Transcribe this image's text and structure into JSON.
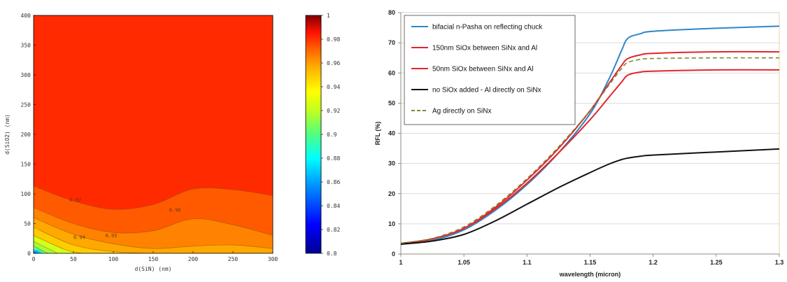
{
  "chart_data": [
    {
      "type": "heatmap",
      "title": "",
      "xlabel": "d(SiN) (nm)",
      "ylabel": "d(SiO2) (nm)",
      "xlim": [
        0,
        300
      ],
      "ylim": [
        0,
        400
      ],
      "xticks": [
        0,
        50,
        100,
        150,
        200,
        250,
        300
      ],
      "yticks": [
        0,
        50,
        100,
        150,
        200,
        250,
        300,
        350,
        400
      ],
      "colorbar": {
        "min": 0.8,
        "max": 1,
        "ticks": [
          "0.8",
          "0.82",
          "0.84",
          "0.86",
          "0.88",
          "0.9",
          "0.92",
          "0.94",
          "0.96",
          "0.98",
          "1"
        ]
      },
      "contours": [
        {
          "level": 0.97,
          "label": "0.97",
          "y_at_x": [
            [
              0,
              113
            ],
            [
              50,
              88
            ],
            [
              100,
              74
            ],
            [
              150,
              82
            ],
            [
              200,
              108
            ],
            [
              250,
              107
            ],
            [
              300,
              97
            ]
          ],
          "label_at": [
            45,
            87
          ],
          "label_text_value": 0.97
        },
        {
          "level": 0.96,
          "label": "0.96",
          "y_at_x": [
            [
              0,
              77
            ],
            [
              50,
              50
            ],
            [
              100,
              35
            ],
            [
              150,
              38
            ],
            [
              200,
              58
            ],
            [
              250,
              48
            ],
            [
              300,
              30
            ]
          ],
          "label_at": [
            170,
            70
          ]
        },
        {
          "level": 0.95,
          "label": "0.95",
          "y_at_x": [
            [
              0,
              60
            ],
            [
              50,
              32
            ],
            [
              100,
              16
            ],
            [
              150,
              8
            ],
            [
              200,
              12
            ],
            [
              250,
              14
            ],
            [
              300,
              8
            ]
          ],
          "label_at": [
            90,
            27
          ]
        },
        {
          "level": 0.94,
          "label": "0.94",
          "y_at_x": [
            [
              0,
              44
            ],
            [
              50,
              14
            ],
            [
              100,
              3
            ],
            [
              150,
              0
            ],
            [
              200,
              0
            ],
            [
              250,
              0
            ],
            [
              300,
              0
            ]
          ],
          "label_at": [
            50,
            24
          ]
        },
        {
          "level": 0.93,
          "label": "",
          "y_at_x": [
            [
              0,
              30
            ],
            [
              40,
              6
            ],
            [
              60,
              0
            ]
          ]
        },
        {
          "level": 0.92,
          "label": "",
          "y_at_x": [
            [
              0,
              20
            ],
            [
              30,
              0
            ]
          ]
        },
        {
          "level": 0.9,
          "label": "",
          "y_at_x": [
            [
              0,
              12
            ],
            [
              18,
              0
            ]
          ]
        }
      ],
      "contour_labels_shown": [
        "0.97",
        "0.96",
        "0.95",
        "0.96",
        "0.94",
        "0.95",
        "0.96"
      ]
    },
    {
      "type": "line",
      "title": "",
      "xlabel": "wavelength (micron)",
      "ylabel": "RFL (%)",
      "xlim": [
        1,
        1.3
      ],
      "ylim": [
        0,
        80
      ],
      "xticks": [
        "1",
        "1.05",
        "1.1",
        "1.15",
        "1.2",
        "1.25",
        "1.3"
      ],
      "yticks": [
        "0",
        "10",
        "20",
        "30",
        "40",
        "50",
        "60",
        "70",
        "80"
      ],
      "grid": true,
      "legend_position": "top-left",
      "series": [
        {
          "name": "bifacial n-Pasha  on reflecting chuck",
          "color": "#2e86c8",
          "dash": "solid",
          "x": [
            1.0,
            1.025,
            1.05,
            1.075,
            1.1,
            1.125,
            1.15,
            1.165,
            1.175,
            1.18,
            1.19,
            1.2,
            1.25,
            1.3
          ],
          "y": [
            3.2,
            4.5,
            8.0,
            14.5,
            23.0,
            33.5,
            46.5,
            58.0,
            67.5,
            71.5,
            73.0,
            73.8,
            74.8,
            75.5
          ]
        },
        {
          "name": "150nm SiOx between SiNx and Al",
          "color": "#e3262d",
          "dash": "solid",
          "x": [
            1.0,
            1.025,
            1.05,
            1.075,
            1.1,
            1.125,
            1.15,
            1.165,
            1.175,
            1.18,
            1.19,
            1.2,
            1.25,
            1.3
          ],
          "y": [
            3.5,
            5.0,
            8.5,
            15.5,
            24.5,
            35.0,
            47.5,
            56.5,
            62.5,
            64.8,
            66.0,
            66.5,
            67.0,
            67.0
          ]
        },
        {
          "name": "50nm SiOx between SiNx and Al",
          "color": "#e3262d",
          "dash": "solid",
          "x": [
            1.0,
            1.025,
            1.05,
            1.075,
            1.1,
            1.125,
            1.15,
            1.165,
            1.175,
            1.18,
            1.19,
            1.2,
            1.25,
            1.3
          ],
          "y": [
            3.5,
            5.0,
            8.5,
            15.0,
            23.5,
            33.5,
            44.5,
            52.0,
            57.0,
            59.3,
            60.3,
            60.6,
            61.0,
            61.0
          ]
        },
        {
          "name": "no SiOx added - Al directly on SiNx",
          "color": "#111111",
          "dash": "solid",
          "x": [
            1.0,
            1.025,
            1.05,
            1.075,
            1.1,
            1.125,
            1.15,
            1.165,
            1.175,
            1.18,
            1.19,
            1.2,
            1.25,
            1.3
          ],
          "y": [
            3.3,
            4.3,
            6.5,
            11.0,
            16.5,
            22.0,
            27.0,
            29.8,
            31.3,
            31.8,
            32.4,
            32.8,
            33.8,
            34.8
          ]
        },
        {
          "name": "Ag directly on SiNx",
          "color": "#7a8a3a",
          "dash": "dashed",
          "x": [
            1.0,
            1.025,
            1.05,
            1.075,
            1.1,
            1.125,
            1.15,
            1.165,
            1.175,
            1.18,
            1.19,
            1.2,
            1.25,
            1.3
          ],
          "y": [
            3.6,
            5.2,
            9.0,
            16.0,
            25.0,
            35.5,
            47.5,
            56.0,
            61.5,
            63.5,
            64.5,
            64.8,
            65.0,
            65.0
          ]
        }
      ]
    }
  ]
}
